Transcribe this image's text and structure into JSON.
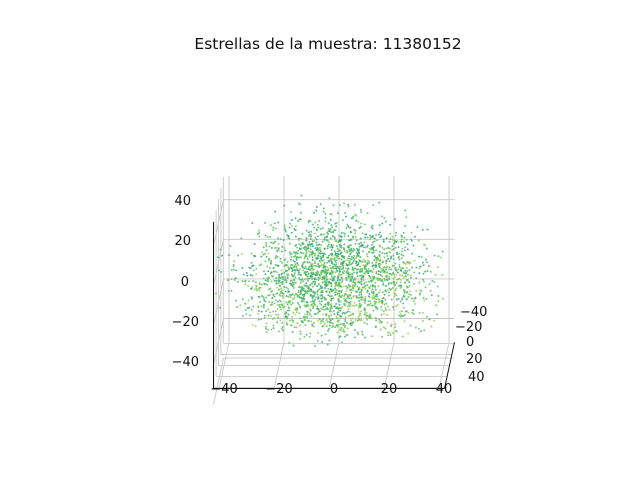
{
  "chart_data": {
    "type": "scatter",
    "projection": "3d",
    "title": "Estrellas de la muestra: 11380152",
    "xlabel": "",
    "ylabel": "",
    "zlabel": "",
    "xlim": [
      -45,
      45
    ],
    "ylim": [
      -45,
      45
    ],
    "zlim": [
      -40,
      52
    ],
    "x_ticks": [
      "−40",
      "−20",
      "0",
      "20",
      "40"
    ],
    "y_ticks": [
      "−40",
      "−20",
      "0",
      "20",
      "40"
    ],
    "z_ticks": [
      "−40",
      "−20",
      "0",
      "20",
      "40"
    ],
    "grid": true,
    "colormap": [
      "#2c9f8a",
      "#37a987",
      "#4ab87a",
      "#6cc667",
      "#8fd255",
      "#aada4b"
    ],
    "point_size": 1.6,
    "series": [
      {
        "description": "point cloud centred near origin, roughly spherical, radius approx. 40",
        "center": [
          0,
          0,
          10
        ],
        "extent": [
          [
            -40,
            40
          ],
          [
            -40,
            40
          ],
          [
            -15,
            50
          ]
        ]
      }
    ]
  }
}
